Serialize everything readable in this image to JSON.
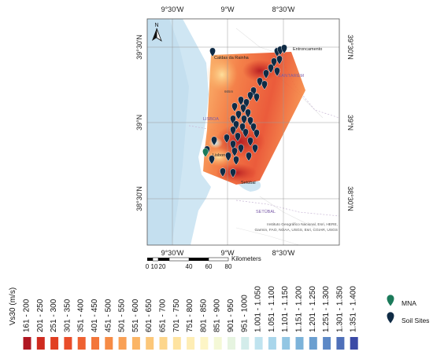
{
  "axes": {
    "top": [
      "9°30'W",
      "9°W",
      "8°30'W"
    ],
    "bottom": [
      "9°30'W",
      "9°W",
      "8°30'W"
    ],
    "left": [
      "39°30'N",
      "39°N",
      "38°30'N"
    ],
    "right": [
      "39°30'N",
      "39°N",
      "38°30'N"
    ]
  },
  "north_arrow": {
    "label": "N",
    "icon": "north-arrow-icon"
  },
  "places": {
    "caldas": "Caldas da Rainha",
    "entroncamento": "Entroncamento",
    "santarem": "SANTARÉM",
    "lisbon_region": "LISBOA",
    "lisbon": "Lisbon",
    "setubal_city": "Setúbal",
    "setubal_region": "SETÚBAL",
    "small_label": "665m"
  },
  "attribution": [
    "Instituto Geográfico Nacional, Esri, HERE,",
    "Garmin, FAO, NOAA, USGS, Esri, CGIAR, USGS"
  ],
  "scalebar": {
    "ticks": [
      "0",
      "10",
      "20",
      "40",
      "60",
      "80"
    ],
    "unit": "Kilometers"
  },
  "legend_title": "Vs30 (m/s)",
  "legend_classes": [
    {
      "label": "161 - 200",
      "color": "#b01722"
    },
    {
      "label": "201 - 250",
      "color": "#cf2b1f"
    },
    {
      "label": "251 - 300",
      "color": "#e13f22"
    },
    {
      "label": "301 - 350",
      "color": "#e94d2a"
    },
    {
      "label": "351 - 400",
      "color": "#ee6131"
    },
    {
      "label": "401 - 450",
      "color": "#f3763a"
    },
    {
      "label": "451 - 500",
      "color": "#f68b45"
    },
    {
      "label": "501 - 550",
      "color": "#f9a055"
    },
    {
      "label": "551 - 600",
      "color": "#fbb566"
    },
    {
      "label": "601 - 650",
      "color": "#fcc779"
    },
    {
      "label": "651 - 700",
      "color": "#fdd68c"
    },
    {
      "label": "701 - 750",
      "color": "#fee3a0"
    },
    {
      "label": "751 - 800",
      "color": "#feedb4"
    },
    {
      "label": "801 - 850",
      "color": "#fdf5c6"
    },
    {
      "label": "851 - 900",
      "color": "#f4f8d6"
    },
    {
      "label": "901 - 950",
      "color": "#e6f4e0"
    },
    {
      "label": "951 - 1000",
      "color": "#d3ecea"
    },
    {
      "label": "1.001 - 1.050",
      "color": "#bfe3ef"
    },
    {
      "label": "1.051 - 1.100",
      "color": "#a9d6eb"
    },
    {
      "label": "1.101 - 1.150",
      "color": "#92c6e3"
    },
    {
      "label": "1.151 - 1.200",
      "color": "#7cb3da"
    },
    {
      "label": "1.201 - 1.250",
      "color": "#6b9fd0"
    },
    {
      "label": "1.251 - 1.300",
      "color": "#5d89c6"
    },
    {
      "label": "1.301 - 1.350",
      "color": "#4f70b9"
    },
    {
      "label": "1.351 - 1.400",
      "color": "#3b4aa6"
    }
  ],
  "markers": [
    {
      "label": "MNA",
      "color": "#1b7a5a",
      "icon": "map-pin-icon"
    },
    {
      "label": "Soil Sites",
      "color": "#0f2b45",
      "icon": "map-pin-icon"
    }
  ]
}
